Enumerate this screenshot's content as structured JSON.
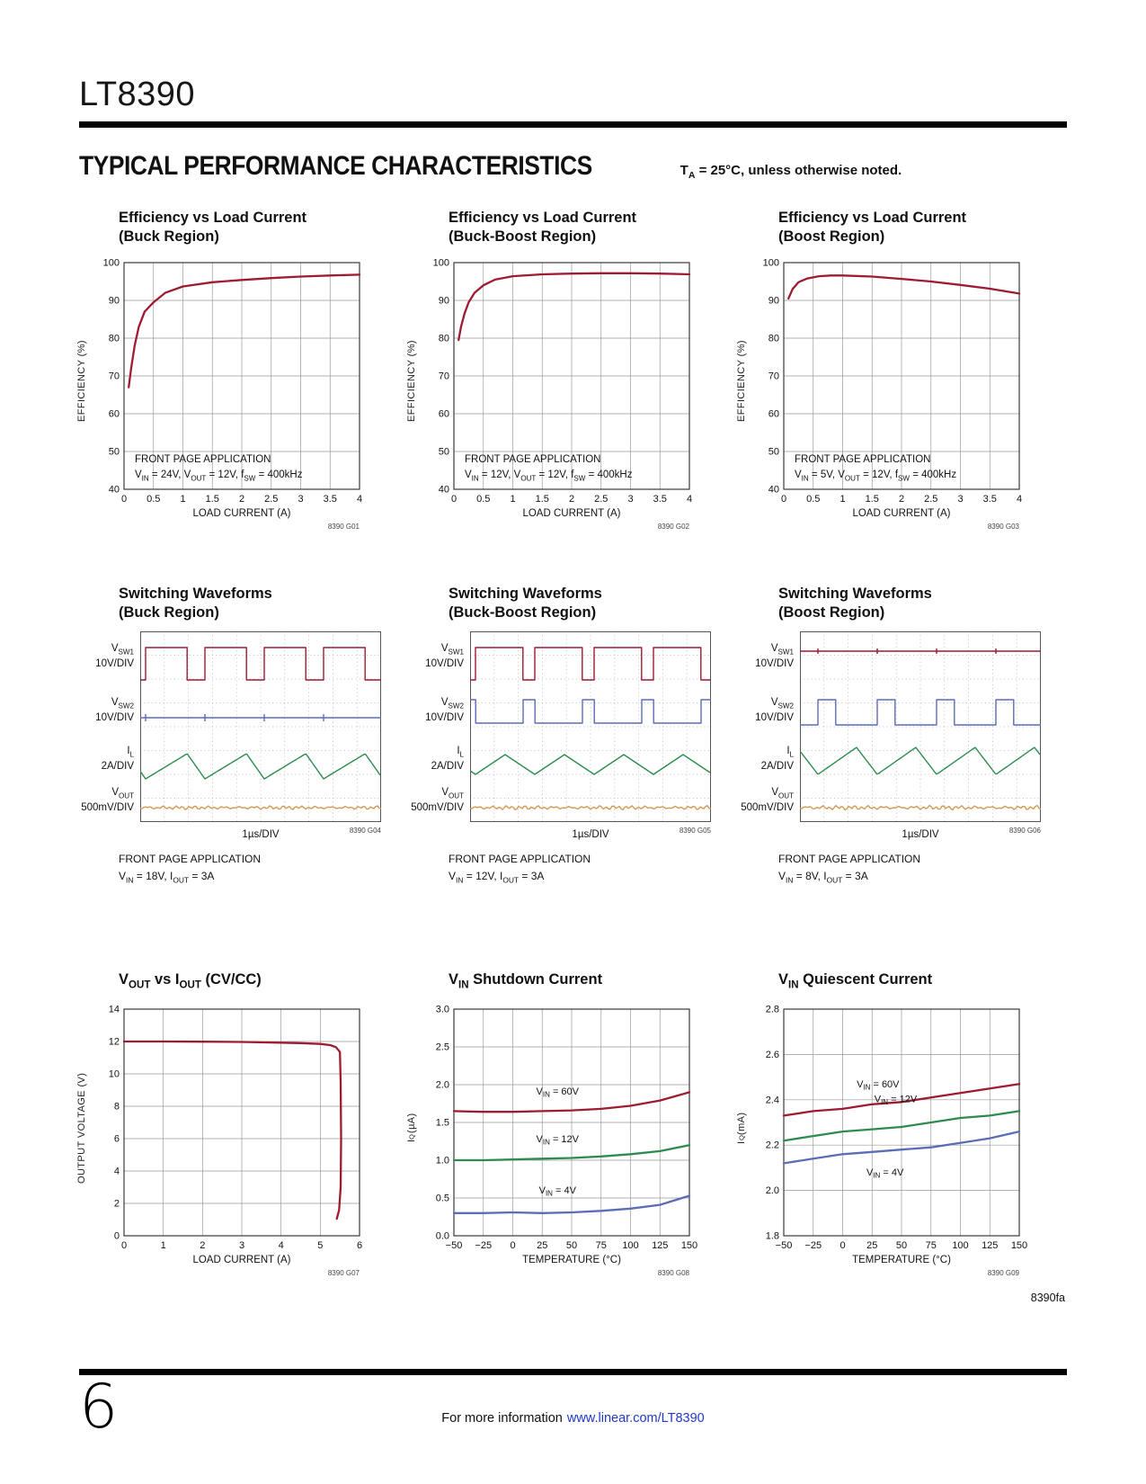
{
  "page": {
    "part_number": "LT8390",
    "section_title": "TYPICAL PERFORMANCE CHARACTERISTICS",
    "section_note": "T_{A} = 25°C, unless otherwise noted.",
    "footer_code": "8390fa",
    "page_number": "6",
    "footer_text": "For more information",
    "footer_link": "www.linear.com/LT8390"
  },
  "colors": {
    "red": "#9e1b32",
    "green": "#2e8b4f",
    "blue": "#5b6cb8",
    "orange": "#d29a55",
    "grid": "#999999",
    "frame": "#3a3a3a",
    "dots": "#b8b8b8",
    "link": "#2038c8"
  },
  "chart_data": [
    {
      "id": "8390 G01",
      "type": "line",
      "title_line1": "Efficiency vs Load Current",
      "title_line2": "(Buck Region)",
      "xlabel": "LOAD CURRENT (A)",
      "ylabel": "EFFICIENCY (%)",
      "xlim": [
        0,
        4
      ],
      "ylim": [
        40,
        100
      ],
      "xticks": [
        0,
        0.5,
        1,
        1.5,
        2,
        2.5,
        3,
        3.5,
        4
      ],
      "xtick_labels": [
        "0",
        "0.5",
        "1",
        "1.5",
        "2",
        "2.5",
        "3",
        "3.5",
        "4"
      ],
      "yticks": [
        40,
        50,
        60,
        70,
        80,
        90,
        100
      ],
      "ytick_labels": [
        "40",
        "50",
        "60",
        "70",
        "80",
        "90",
        "100"
      ],
      "annotation": [
        "FRONT PAGE APPLICATION",
        "V_{IN} = 24V, V_{OUT} = 12V, f_{SW} = 400kHz"
      ],
      "series": [
        {
          "name": "efficiency",
          "color": "red",
          "x": [
            0.08,
            0.12,
            0.18,
            0.25,
            0.35,
            0.5,
            0.7,
            1.0,
            1.5,
            2.0,
            2.5,
            3.0,
            3.5,
            4.0
          ],
          "y": [
            67,
            72,
            78,
            83,
            87,
            89.5,
            92,
            93.7,
            94.8,
            95.4,
            95.9,
            96.3,
            96.6,
            96.8
          ]
        }
      ]
    },
    {
      "id": "8390 G02",
      "type": "line",
      "title_line1": "Efficiency vs Load Current",
      "title_line2": "(Buck-Boost Region)",
      "xlabel": "LOAD CURRENT (A)",
      "ylabel": "EFFICIENCY (%)",
      "xlim": [
        0,
        4
      ],
      "ylim": [
        40,
        100
      ],
      "xticks": [
        0,
        0.5,
        1,
        1.5,
        2,
        2.5,
        3,
        3.5,
        4
      ],
      "xtick_labels": [
        "0",
        "0.5",
        "1",
        "1.5",
        "2",
        "2.5",
        "3",
        "3.5",
        "4"
      ],
      "yticks": [
        40,
        50,
        60,
        70,
        80,
        90,
        100
      ],
      "ytick_labels": [
        "40",
        "50",
        "60",
        "70",
        "80",
        "90",
        "100"
      ],
      "annotation": [
        "FRONT PAGE APPLICATION",
        "V_{IN} = 12V, V_{OUT} = 12V, f_{SW} = 400kHz"
      ],
      "series": [
        {
          "name": "efficiency",
          "color": "red",
          "x": [
            0.08,
            0.12,
            0.18,
            0.25,
            0.35,
            0.5,
            0.7,
            1.0,
            1.5,
            2.0,
            2.5,
            3.0,
            3.5,
            4.0
          ],
          "y": [
            79.5,
            83,
            86.5,
            89.5,
            92,
            94,
            95.5,
            96.4,
            96.9,
            97.1,
            97.2,
            97.2,
            97.1,
            96.9
          ]
        }
      ]
    },
    {
      "id": "8390 G03",
      "type": "line",
      "title_line1": "Efficiency vs Load Current",
      "title_line2": "(Boost Region)",
      "xlabel": "LOAD CURRENT (A)",
      "ylabel": "EFFICIENCY (%)",
      "xlim": [
        0,
        4
      ],
      "ylim": [
        40,
        100
      ],
      "xticks": [
        0,
        0.5,
        1,
        1.5,
        2,
        2.5,
        3,
        3.5,
        4
      ],
      "xtick_labels": [
        "0",
        "0.5",
        "1",
        "1.5",
        "2",
        "2.5",
        "3",
        "3.5",
        "4"
      ],
      "yticks": [
        40,
        50,
        60,
        70,
        80,
        90,
        100
      ],
      "ytick_labels": [
        "40",
        "50",
        "60",
        "70",
        "80",
        "90",
        "100"
      ],
      "annotation": [
        "FRONT PAGE APPLICATION",
        "V_{IN} = 5V, V_{OUT} = 12V, f_{SW} = 400kHz"
      ],
      "series": [
        {
          "name": "efficiency",
          "color": "red",
          "x": [
            0.08,
            0.15,
            0.25,
            0.4,
            0.6,
            0.8,
            1.0,
            1.5,
            2.0,
            2.5,
            3.0,
            3.5,
            4.0
          ],
          "y": [
            90.5,
            93,
            94.8,
            95.8,
            96.4,
            96.6,
            96.6,
            96.3,
            95.7,
            95.0,
            94.1,
            93.1,
            91.8
          ]
        }
      ]
    },
    {
      "id": "8390 G04",
      "type": "scope",
      "title_line1": "Switching Waveforms",
      "title_line2": "(Buck Region)",
      "xdiv_label": "1µs/DIV",
      "note": [
        "FRONT PAGE APPLICATION",
        "V_{IN} = 18V, I_{OUT} = 3A"
      ],
      "channels": [
        {
          "name": "V_{SW1}",
          "scale": "10V/DIV",
          "color": "red",
          "wave": {
            "kind": "pwm",
            "period": 66,
            "duty": 0.7,
            "hi": 18,
            "lo": 54,
            "phase": 6
          }
        },
        {
          "name": "V_{SW2}",
          "scale": "10V/DIV",
          "color": "blue",
          "wave": {
            "kind": "flat_ticks",
            "y": 96,
            "period": 66,
            "phase": 6,
            "tick": 4
          }
        },
        {
          "name": "I_{L}",
          "scale": "2A/DIV",
          "color": "green",
          "wave": {
            "kind": "triangle",
            "period": 66,
            "mid": 150,
            "amp": 14,
            "rise": 0.7,
            "phase": 6
          }
        },
        {
          "name": "V_{OUT}",
          "scale": "500mV/DIV",
          "color": "orange",
          "wave": {
            "kind": "noise",
            "y": 196,
            "amp": 2.2
          }
        }
      ]
    },
    {
      "id": "8390 G05",
      "type": "scope",
      "title_line1": "Switching Waveforms",
      "title_line2": "(Buck-Boost Region)",
      "xdiv_label": "1µs/DIV",
      "note": [
        "FRONT PAGE APPLICATION",
        "V_{IN} = 12V, I_{OUT} = 3A"
      ],
      "channels": [
        {
          "name": "V_{SW1}",
          "scale": "10V/DIV",
          "color": "red",
          "wave": {
            "kind": "pwm",
            "period": 66,
            "duty": 0.8,
            "hi": 18,
            "lo": 54,
            "phase": 6
          }
        },
        {
          "name": "V_{SW2}",
          "scale": "10V/DIV",
          "color": "blue",
          "wave": {
            "kind": "pwm",
            "period": 66,
            "duty": 0.2,
            "hi": 76,
            "lo": 102,
            "phase": 59
          }
        },
        {
          "name": "I_{L}",
          "scale": "2A/DIV",
          "color": "green",
          "wave": {
            "kind": "triangle",
            "period": 66,
            "mid": 148,
            "amp": 11,
            "rise": 0.5,
            "phase": 6
          }
        },
        {
          "name": "V_{OUT}",
          "scale": "500mV/DIV",
          "color": "orange",
          "wave": {
            "kind": "noise",
            "y": 196,
            "amp": 2.4
          }
        }
      ]
    },
    {
      "id": "8390 G06",
      "type": "scope",
      "title_line1": "Switching Waveforms",
      "title_line2": "(Boost Region)",
      "xdiv_label": "1µs/DIV",
      "note": [
        "FRONT PAGE APPLICATION",
        "V_{IN} = 8V, I_{OUT} = 3A"
      ],
      "channels": [
        {
          "name": "V_{SW1}",
          "scale": "10V/DIV",
          "color": "red",
          "wave": {
            "kind": "flat_ticks",
            "y": 22,
            "period": 66,
            "phase": 20,
            "tick": 3
          }
        },
        {
          "name": "V_{SW2}",
          "scale": "10V/DIV",
          "color": "blue",
          "wave": {
            "kind": "pwm",
            "period": 66,
            "duty": 0.3,
            "hi": 76,
            "lo": 104,
            "phase": 20
          }
        },
        {
          "name": "I_{L}",
          "scale": "2A/DIV",
          "color": "green",
          "wave": {
            "kind": "triangle",
            "period": 66,
            "mid": 144,
            "amp": 15,
            "rise": 0.65,
            "phase": 20
          }
        },
        {
          "name": "V_{OUT}",
          "scale": "500mV/DIV",
          "color": "orange",
          "wave": {
            "kind": "noise",
            "y": 196,
            "amp": 2.6
          }
        }
      ]
    },
    {
      "id": "8390 G07",
      "type": "line",
      "title": "V_{OUT} vs I_{OUT} (CV/CC)",
      "xlabel": "LOAD CURRENT (A)",
      "ylabel": "OUTPUT VOLTAGE (V)",
      "xlim": [
        0,
        6
      ],
      "ylim": [
        0,
        14
      ],
      "xticks": [
        0,
        1,
        2,
        3,
        4,
        5,
        6
      ],
      "xtick_labels": [
        "0",
        "1",
        "2",
        "3",
        "4",
        "5",
        "6"
      ],
      "yticks": [
        0,
        2,
        4,
        6,
        8,
        10,
        12,
        14
      ],
      "ytick_labels": [
        "0",
        "2",
        "4",
        "6",
        "8",
        "10",
        "12",
        "14"
      ],
      "series": [
        {
          "name": "output voltage",
          "color": "red",
          "x": [
            0,
            1,
            2,
            3,
            4,
            4.5,
            5,
            5.25,
            5.4,
            5.5,
            5.52,
            5.53,
            5.52,
            5.48,
            5.42
          ],
          "y": [
            12,
            12,
            11.99,
            11.97,
            11.93,
            11.9,
            11.85,
            11.78,
            11.65,
            11.35,
            9.5,
            6,
            3,
            1.6,
            1.05
          ]
        }
      ]
    },
    {
      "id": "8390 G08",
      "type": "line",
      "title": "V_{IN} Shutdown Current",
      "xlabel": "TEMPERATURE (°C)",
      "ylabel": "I_{Q} (µA)",
      "xlim": [
        -50,
        150
      ],
      "ylim": [
        0,
        3
      ],
      "xticks": [
        -50,
        -25,
        0,
        25,
        50,
        75,
        100,
        125,
        150
      ],
      "xtick_labels": [
        "−50",
        "−25",
        "0",
        "25",
        "50",
        "75",
        "100",
        "125",
        "150"
      ],
      "yticks": [
        0,
        0.5,
        1,
        1.5,
        2,
        2.5,
        3
      ],
      "ytick_labels": [
        "0.0",
        "0.5",
        "1.0",
        "1.5",
        "2.0",
        "2.5",
        "3.0"
      ],
      "series": [
        {
          "name": "V_{IN} = 60V",
          "color": "red",
          "x": [
            -50,
            -25,
            0,
            25,
            50,
            75,
            100,
            125,
            150
          ],
          "y": [
            1.65,
            1.64,
            1.64,
            1.65,
            1.66,
            1.68,
            1.72,
            1.79,
            1.9
          ]
        },
        {
          "name": "V_{IN} = 12V",
          "color": "green",
          "x": [
            -50,
            -25,
            0,
            25,
            50,
            75,
            100,
            125,
            150
          ],
          "y": [
            1.0,
            1.0,
            1.01,
            1.02,
            1.03,
            1.05,
            1.08,
            1.12,
            1.2
          ]
        },
        {
          "name": "V_{IN} = 4V",
          "color": "blue",
          "x": [
            -50,
            -25,
            0,
            25,
            50,
            75,
            100,
            125,
            150
          ],
          "y": [
            0.3,
            0.3,
            0.31,
            0.3,
            0.31,
            0.33,
            0.36,
            0.41,
            0.53
          ]
        }
      ],
      "labels": [
        {
          "text": "V_{IN} = 60V",
          "x": 38,
          "y": 1.87
        },
        {
          "text": "V_{IN} = 12V",
          "x": 38,
          "y": 1.24
        },
        {
          "text": "V_{IN} = 4V",
          "x": 38,
          "y": 0.56
        }
      ]
    },
    {
      "id": "8390 G09",
      "type": "line",
      "title": "V_{IN} Quiescent Current",
      "xlabel": "TEMPERATURE (°C)",
      "ylabel": "I_{Q} (mA)",
      "xlim": [
        -50,
        150
      ],
      "ylim": [
        1.8,
        2.8
      ],
      "xticks": [
        -50,
        -25,
        0,
        25,
        50,
        75,
        100,
        125,
        150
      ],
      "xtick_labels": [
        "−50",
        "−25",
        "0",
        "25",
        "50",
        "75",
        "100",
        "125",
        "150"
      ],
      "yticks": [
        1.8,
        2.0,
        2.2,
        2.4,
        2.6,
        2.8
      ],
      "ytick_labels": [
        "1.8",
        "2.0",
        "2.2",
        "2.4",
        "2.6",
        "2.8"
      ],
      "series": [
        {
          "name": "V_{IN} = 60V",
          "color": "red",
          "x": [
            -50,
            -25,
            0,
            25,
            50,
            75,
            100,
            125,
            150
          ],
          "y": [
            2.33,
            2.35,
            2.36,
            2.38,
            2.39,
            2.41,
            2.43,
            2.45,
            2.47
          ]
        },
        {
          "name": "V_{IN} = 12V",
          "color": "green",
          "x": [
            -50,
            -25,
            0,
            25,
            50,
            75,
            100,
            125,
            150
          ],
          "y": [
            2.22,
            2.24,
            2.26,
            2.27,
            2.28,
            2.3,
            2.32,
            2.33,
            2.35
          ]
        },
        {
          "name": "V_{IN} = 4V",
          "color": "blue",
          "x": [
            -50,
            -25,
            0,
            25,
            50,
            75,
            100,
            125,
            150
          ],
          "y": [
            2.12,
            2.14,
            2.16,
            2.17,
            2.18,
            2.19,
            2.21,
            2.23,
            2.26
          ]
        }
      ],
      "labels": [
        {
          "text": "V_{IN} = 60V",
          "x": 30,
          "y": 2.455
        },
        {
          "text": "V_{IN} = 12V",
          "x": 45,
          "y": 2.39
        },
        {
          "text": "V_{IN} = 4V",
          "x": 36,
          "y": 2.065
        }
      ]
    }
  ]
}
